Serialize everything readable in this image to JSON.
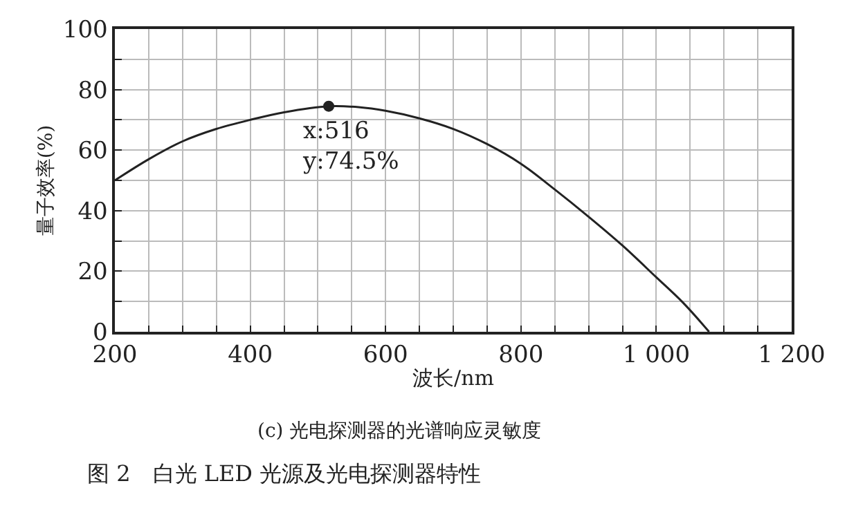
{
  "chart_data": {
    "type": "line",
    "xlabel": "波长/nm",
    "ylabel": "量子效率(%)",
    "x": [
      200,
      250,
      300,
      350,
      400,
      450,
      516,
      560,
      600,
      650,
      700,
      750,
      800,
      850,
      900,
      950,
      1000,
      1040,
      1078
    ],
    "series": [
      {
        "color": "#222222",
        "values": [
          50,
          57,
          62.9,
          67,
          70,
          72.5,
          74.5,
          74.2,
          73,
          70.5,
          67,
          62,
          55.5,
          47,
          38,
          28.5,
          18,
          9.5,
          0
        ]
      },
      {
        "type": "scatter",
        "x": [
          516
        ],
        "color": "#222222",
        "marker": "circle",
        "values": [
          74.5
        ]
      }
    ],
    "xlim": [
      200,
      1200
    ],
    "ylim": [
      0,
      100
    ],
    "xticks": [
      200,
      {
        "value": 250,
        "label": null
      },
      400,
      {
        "value": 300,
        "label": null
      },
      {
        "value": 350,
        "label": null
      },
      {
        "value": 450,
        "label": null
      },
      {
        "value": 500,
        "label": null
      },
      {
        "value": 550,
        "label": null
      },
      600,
      {
        "value": 650,
        "label": null
      },
      {
        "value": 700,
        "label": null
      },
      {
        "value": 750,
        "label": null
      },
      800,
      {
        "value": 850,
        "label": null
      },
      {
        "value": 900,
        "label": null
      },
      {
        "value": 950,
        "label": null
      },
      {
        "value": 1000,
        "label": "1 000"
      },
      {
        "value": 1050,
        "label": null
      },
      {
        "value": 1100,
        "label": null
      },
      {
        "value": 1150,
        "label": null
      },
      {
        "value": 1200,
        "label": "1 200"
      }
    ],
    "yticks": [
      0,
      {
        "value": 10,
        "label": null
      },
      20,
      {
        "value": 30,
        "label": null
      },
      40,
      {
        "value": 50,
        "label": null
      },
      60,
      {
        "value": 70,
        "label": null
      },
      80,
      {
        "value": 90,
        "label": null
      },
      100
    ],
    "grid": true,
    "line_style": "solid",
    "marker": "none",
    "annotations": [
      {
        "text": "x:516\ny:74.5%",
        "x": 516,
        "y": 74.5
      },
      "(c) 光电探测器的光谱响应灵敏度",
      "图 2　白光 LED 光源及光电探测器特性"
    ]
  }
}
